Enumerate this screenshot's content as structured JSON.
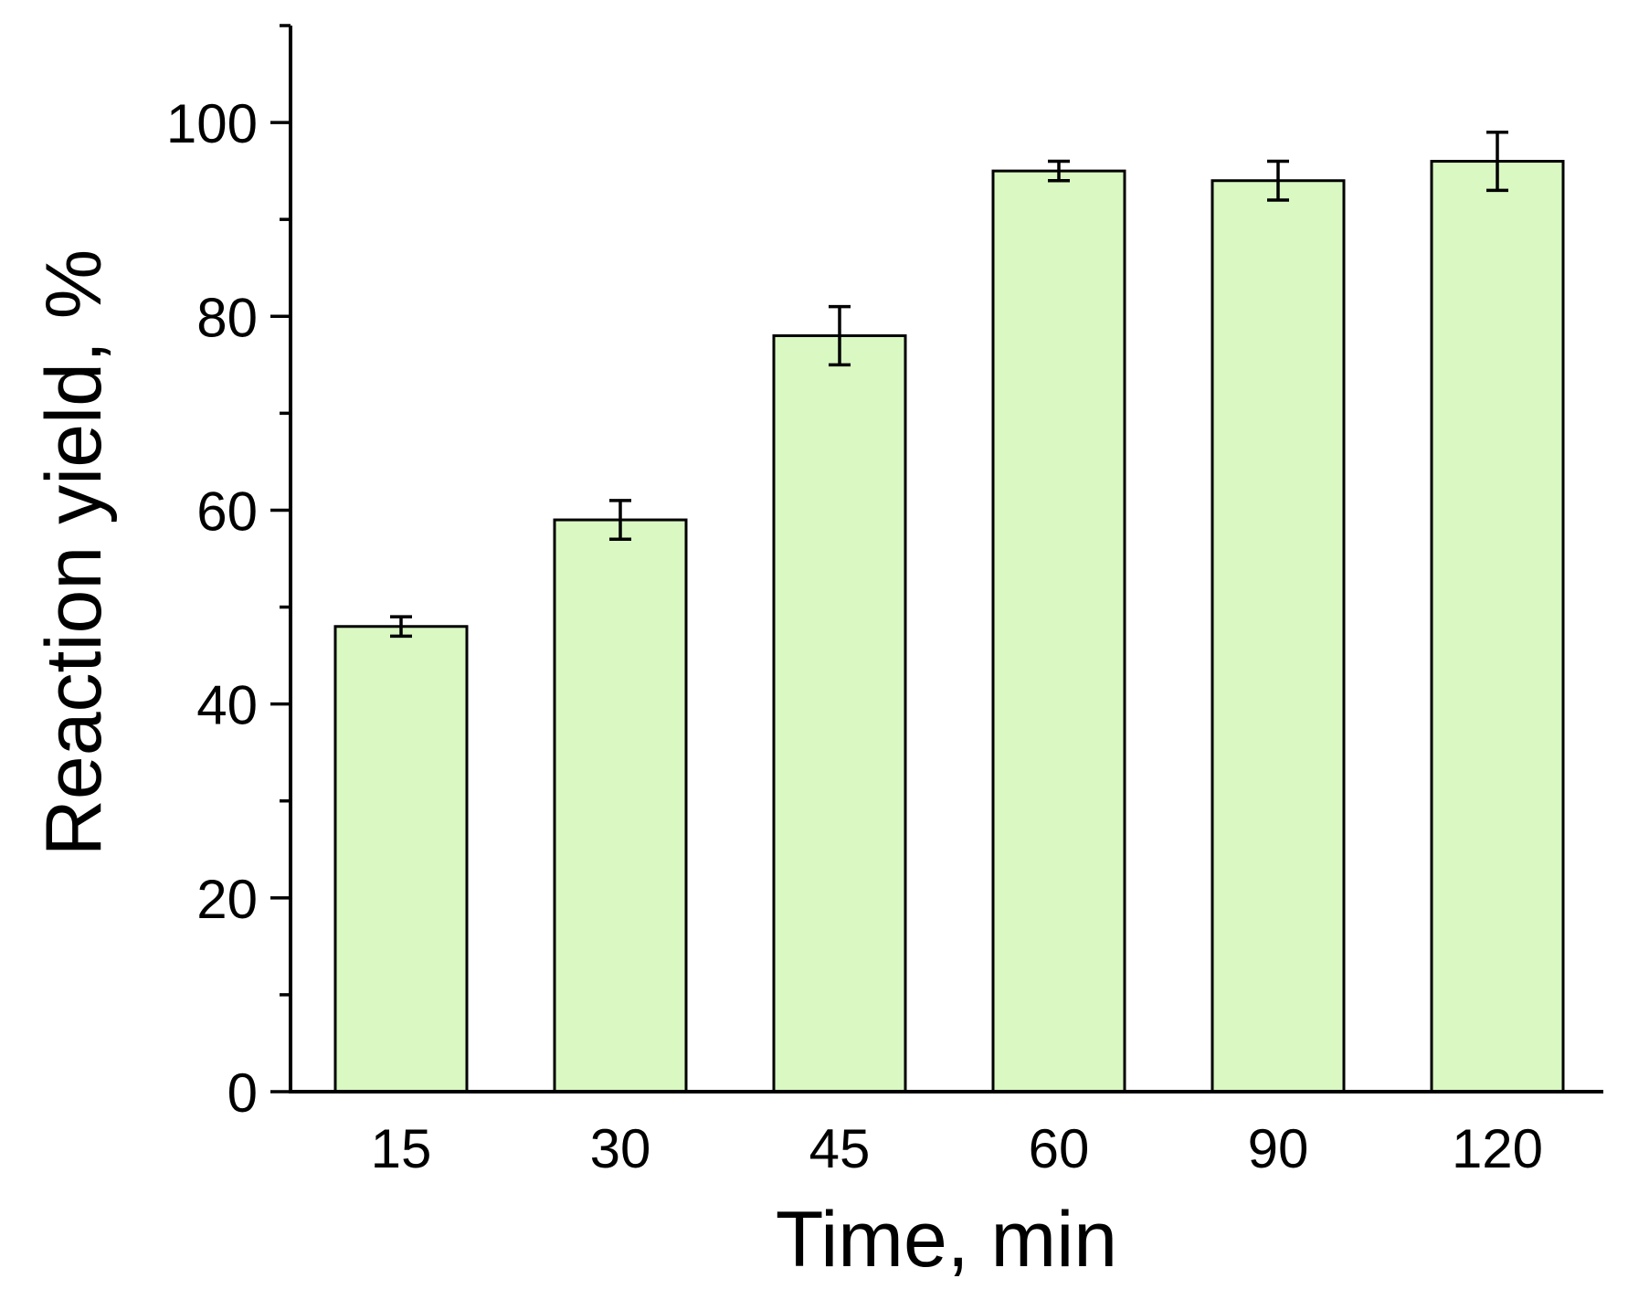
{
  "chart_data": {
    "type": "bar",
    "title": "",
    "xlabel": "Time, min",
    "ylabel": "Reaction yield, %",
    "categories": [
      "15",
      "30",
      "45",
      "60",
      "90",
      "120"
    ],
    "values": [
      48,
      59,
      78,
      95,
      94,
      96
    ],
    "errors": [
      1,
      2,
      3,
      1,
      2,
      3
    ],
    "ylim": [
      0,
      110
    ],
    "yticks": [
      0,
      20,
      40,
      60,
      80,
      100
    ],
    "yminor_step": 10,
    "grid": false,
    "legend": "none",
    "colors": {
      "bar_fill": "#d9f8c2",
      "bar_stroke": "#000000",
      "axis": "#000000"
    }
  }
}
